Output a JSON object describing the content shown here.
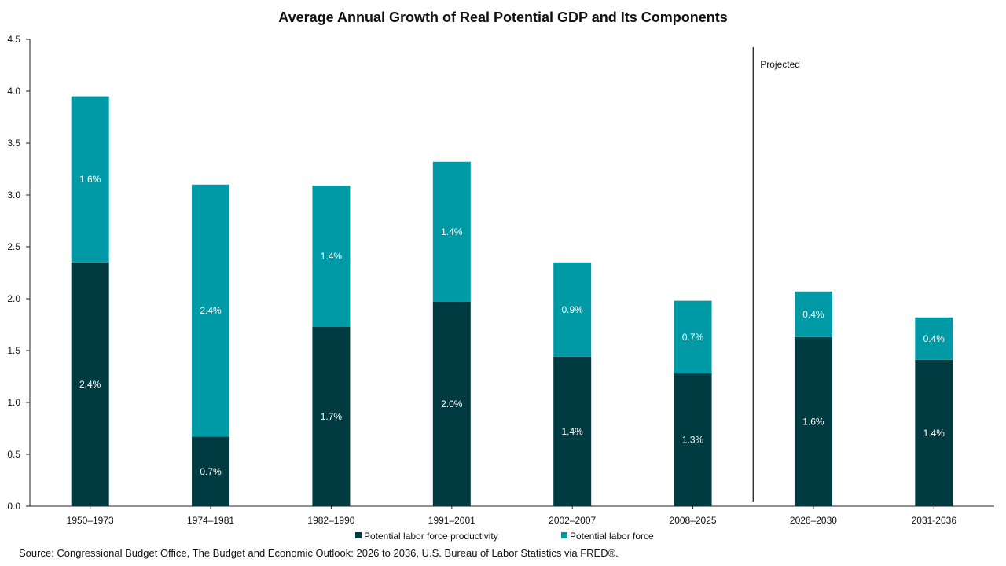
{
  "chart_data": {
    "type": "bar",
    "stacked": true,
    "title": "Average Annual Growth of Real Potential GDP and Its Components",
    "categories": [
      "1950–1973",
      "1974–1981",
      "1982–1990",
      "1991–2001",
      "2002–2007",
      "2008–2025",
      "2026–2030",
      "2031-2036"
    ],
    "series": [
      {
        "name": "Potential labor force productivity",
        "color": "#003b42",
        "values": [
          2.35,
          0.67,
          1.73,
          1.97,
          1.44,
          1.28,
          1.63,
          1.41
        ],
        "labels": [
          "2.4%",
          "0.7%",
          "1.7%",
          "2.0%",
          "1.4%",
          "1.3%",
          "1.6%",
          "1.4%"
        ]
      },
      {
        "name": "Potential labor force",
        "color": "#0099a6",
        "values": [
          1.6,
          2.43,
          1.36,
          1.35,
          0.91,
          0.7,
          0.44,
          0.41
        ],
        "labels": [
          "1.6%",
          "2.4%",
          "1.4%",
          "1.4%",
          "0.9%",
          "0.7%",
          "0.4%",
          "0.4%"
        ]
      }
    ],
    "ylim": [
      0,
      4.5
    ],
    "yticks": [
      "0.0",
      "0.5",
      "1.0",
      "1.5",
      "2.0",
      "2.5",
      "3.0",
      "3.5",
      "4.0",
      "4.5"
    ],
    "xlabel": "",
    "ylabel": "",
    "grid": false,
    "legend_position": "bottom",
    "projection_divider": {
      "label": "Projected",
      "after_category": "2008–2025"
    },
    "source": "Source: Congressional Budget Office, The Budget and Economic Outlook: 2026 to 2036, U.S. Bureau of Labor Statistics via FRED®."
  }
}
